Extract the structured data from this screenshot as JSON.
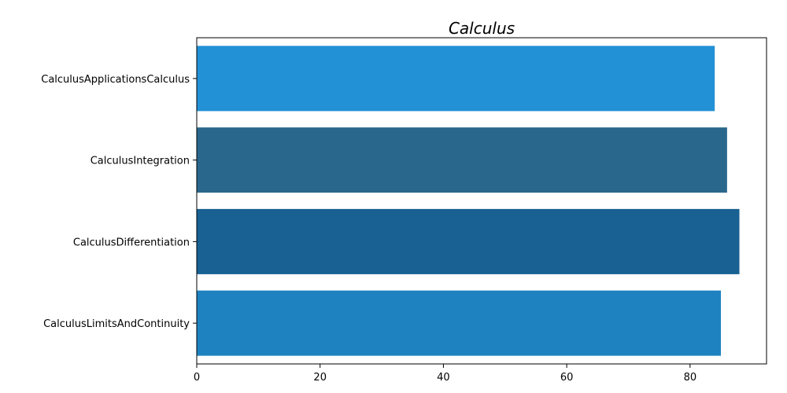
{
  "chart_data": {
    "type": "bar",
    "orientation": "horizontal",
    "title": "Calculus",
    "xlabel": "",
    "ylabel": "",
    "categories": [
      "CalculusApplicationsCalculus",
      "CalculusIntegration",
      "CalculusDifferentiation",
      "CalculusLimitsAndContinuity"
    ],
    "values": [
      84,
      86,
      88,
      85
    ],
    "colors": [
      "#2291d6",
      "#2a678c",
      "#186192",
      "#1e82c0"
    ],
    "xlim": [
      0,
      92.4
    ],
    "xticks": [
      0,
      20,
      40,
      60,
      80
    ],
    "xtick_labels": [
      "0",
      "20",
      "40",
      "60",
      "80"
    ],
    "grid": false,
    "legend": "none"
  }
}
